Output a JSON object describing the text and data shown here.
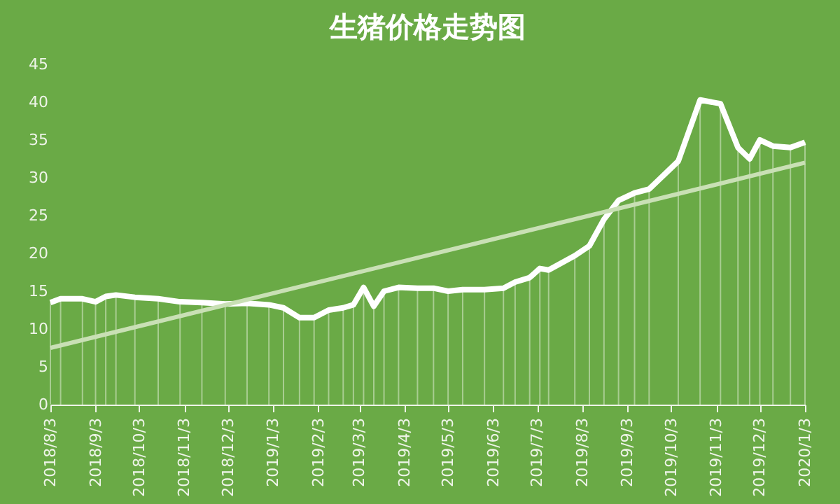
{
  "chart_data": {
    "type": "line",
    "title": "生猪价格走势图",
    "x": [
      "2018-08-03",
      "2018-08-10",
      "2018-08-25",
      "2018-09-03",
      "2018-09-10",
      "2018-09-17",
      "2018-09-30",
      "2018-10-16",
      "2018-10-31",
      "2018-11-15",
      "2018-12-01",
      "2018-12-16",
      "2018-12-31",
      "2019-01-10",
      "2019-01-21",
      "2019-01-31",
      "2019-02-10",
      "2019-02-20",
      "2019-02-27",
      "2019-03-06",
      "2019-03-13",
      "2019-03-20",
      "2019-03-30",
      "2019-04-12",
      "2019-04-23",
      "2019-05-03",
      "2019-05-13",
      "2019-05-28",
      "2019-06-10",
      "2019-06-18",
      "2019-06-28",
      "2019-07-05",
      "2019-07-11",
      "2019-07-29",
      "2019-08-08",
      "2019-08-18",
      "2019-08-28",
      "2019-09-08",
      "2019-09-18",
      "2019-10-08",
      "2019-10-23",
      "2019-11-06",
      "2019-11-18",
      "2019-11-26",
      "2019-12-03",
      "2019-12-12",
      "2019-12-24",
      "2020-01-03"
    ],
    "series": [
      {
        "type": "bar",
        "color": "#d2e5c3",
        "values": [
          13.5,
          14.0,
          14.0,
          13.6,
          14.3,
          14.5,
          14.2,
          14.0,
          13.6,
          13.5,
          13.3,
          13.4,
          13.2,
          12.8,
          11.5,
          11.5,
          12.5,
          12.8,
          13.2,
          15.5,
          13.0,
          15.0,
          15.5,
          15.4,
          15.4,
          15.0,
          15.2,
          15.2,
          15.4,
          16.2,
          16.8,
          18.0,
          17.8,
          19.7,
          21.0,
          24.5,
          27.0,
          28.0,
          28.5,
          32.2,
          40.3,
          39.8,
          34.0,
          32.5,
          35.0,
          34.2,
          34.0,
          34.7
        ]
      },
      {
        "color": "#ffffff",
        "values": [
          13.5,
          14.0,
          14.0,
          13.6,
          14.3,
          14.5,
          14.2,
          14.0,
          13.6,
          13.5,
          13.3,
          13.4,
          13.2,
          12.8,
          11.5,
          11.5,
          12.5,
          12.8,
          13.2,
          15.5,
          13.0,
          15.0,
          15.5,
          15.4,
          15.4,
          15.0,
          15.2,
          15.2,
          15.4,
          16.2,
          16.8,
          18.0,
          17.8,
          19.7,
          21.0,
          24.5,
          27.0,
          28.0,
          28.5,
          32.2,
          40.3,
          39.8,
          34.0,
          32.5,
          35.0,
          34.2,
          34.0,
          34.7
        ]
      },
      {
        "color": "#c9e0b5",
        "x": [
          "2018-08-03",
          "2020-01-03"
        ],
        "values": [
          7.5,
          32.0
        ]
      }
    ],
    "xlim": [
      "2018-08-03",
      "2020-01-03"
    ],
    "xticks": [
      {
        "value": "2018-08-03",
        "label": "2018/8/3"
      },
      {
        "value": "2018-09-03",
        "label": "2018/9/3"
      },
      {
        "value": "2018-10-03",
        "label": "2018/10/3"
      },
      {
        "value": "2018-11-03",
        "label": "2018/11/3"
      },
      {
        "value": "2018-12-03",
        "label": "2018/12/3"
      },
      {
        "value": "2019-01-03",
        "label": "2019/1/3"
      },
      {
        "value": "2019-02-03",
        "label": "2019/2/3"
      },
      {
        "value": "2019-03-03",
        "label": "2019/3/3"
      },
      {
        "value": "2019-04-03",
        "label": "2019/4/3"
      },
      {
        "value": "2019-05-03",
        "label": "2019/5/3"
      },
      {
        "value": "2019-06-03",
        "label": "2019/6/3"
      },
      {
        "value": "2019-07-03",
        "label": "2019/7/3"
      },
      {
        "value": "2019-08-03",
        "label": "2019/8/3"
      },
      {
        "value": "2019-09-03",
        "label": "2019/9/3"
      },
      {
        "value": "2019-10-03",
        "label": "2019/10/3"
      },
      {
        "value": "2019-11-03",
        "label": "2019/11/3"
      },
      {
        "value": "2019-12-03",
        "label": "2019/12/3"
      },
      {
        "value": "2020-01-03",
        "label": "2020/1/3"
      }
    ],
    "ylim": [
      0,
      45
    ],
    "yticks": [
      0,
      5,
      10,
      15,
      20,
      25,
      30,
      35,
      40,
      45
    ],
    "grid": false,
    "marker": "none",
    "line_style": "solid"
  }
}
